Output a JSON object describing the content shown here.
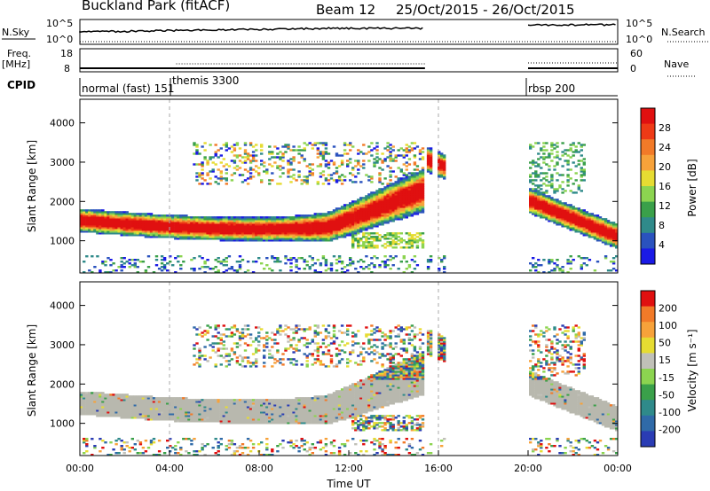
{
  "header": {
    "site": "Buckland Park (fitACF)",
    "beam": "Beam 12",
    "date_range": "25/Oct/2015 - 26/Oct/2015"
  },
  "strips": {
    "nsky": {
      "left_label": "N.Sky",
      "left_ticks": [
        "10^5",
        "10^0"
      ],
      "right_label": "N.Search",
      "right_ticks": [
        "10^5",
        "10^0"
      ]
    },
    "freq": {
      "left_label_top": "Freq.",
      "left_label_bottom": "[MHz]",
      "left_ticks": [
        "18",
        "8"
      ],
      "right_label": "Nave",
      "right_ticks": [
        "60",
        "0"
      ]
    },
    "cpid": {
      "label": "CPID",
      "modes": [
        {
          "name": "normal (fast) 151",
          "start_hour": 0
        },
        {
          "name": "themis 3300",
          "start_hour": 4
        },
        {
          "name": "rbsp 200",
          "start_hour": 20
        }
      ]
    }
  },
  "chart_data": [
    {
      "type": "heatmap",
      "title": "",
      "xlabel": "",
      "ylabel": "Slant Range [km]",
      "xlim_hours": [
        0,
        24
      ],
      "ylim_km": [
        180,
        4600
      ],
      "yticks": [
        1000,
        2000,
        3000,
        4000
      ],
      "colorbar": {
        "label": "Power [dB]",
        "ticks": [
          "4",
          "8",
          "12",
          "16",
          "20",
          "24",
          "28"
        ],
        "colors": [
          "#1a1ae6",
          "#2a52be",
          "#2f8a8a",
          "#3aa04a",
          "#8cd450",
          "#e6dc32",
          "#f7a23a",
          "#f27a28",
          "#ee3a16",
          "#e01010"
        ]
      },
      "data_gaps_hours": [
        [
          15.3,
          15.4
        ],
        [
          15.7,
          15.85
        ],
        [
          16.2,
          20.0
        ]
      ]
    },
    {
      "type": "heatmap",
      "title": "",
      "xlabel": "Time UT",
      "ylabel": "Slant Range [km]",
      "xlim_hours": [
        0,
        24
      ],
      "ylim_km": [
        180,
        4600
      ],
      "yticks": [
        1000,
        2000,
        3000,
        4000
      ],
      "xticks": [
        "00:00",
        "04:00",
        "08:00",
        "12:00",
        "16:00",
        "20:00",
        "00:00"
      ],
      "colorbar": {
        "label": "Velocity [m s⁻¹]",
        "ticks": [
          "200",
          "100",
          "50",
          "15",
          "-15",
          "-50",
          "-100",
          "-200"
        ],
        "colors": [
          "#2a3cb4",
          "#2f6aa8",
          "#2f8a8a",
          "#3aa04a",
          "#8cd450",
          "#c0c0b8",
          "#e6dc32",
          "#f7a23a",
          "#f27a28",
          "#e01010"
        ]
      },
      "data_gaps_hours": [
        [
          15.3,
          15.4
        ],
        [
          15.7,
          15.85
        ],
        [
          16.2,
          20.0
        ]
      ]
    }
  ],
  "colors": {
    "ground_scatter": "#b8b8ae",
    "power_strong": "#e01010",
    "power_weak": "#2a52be"
  }
}
